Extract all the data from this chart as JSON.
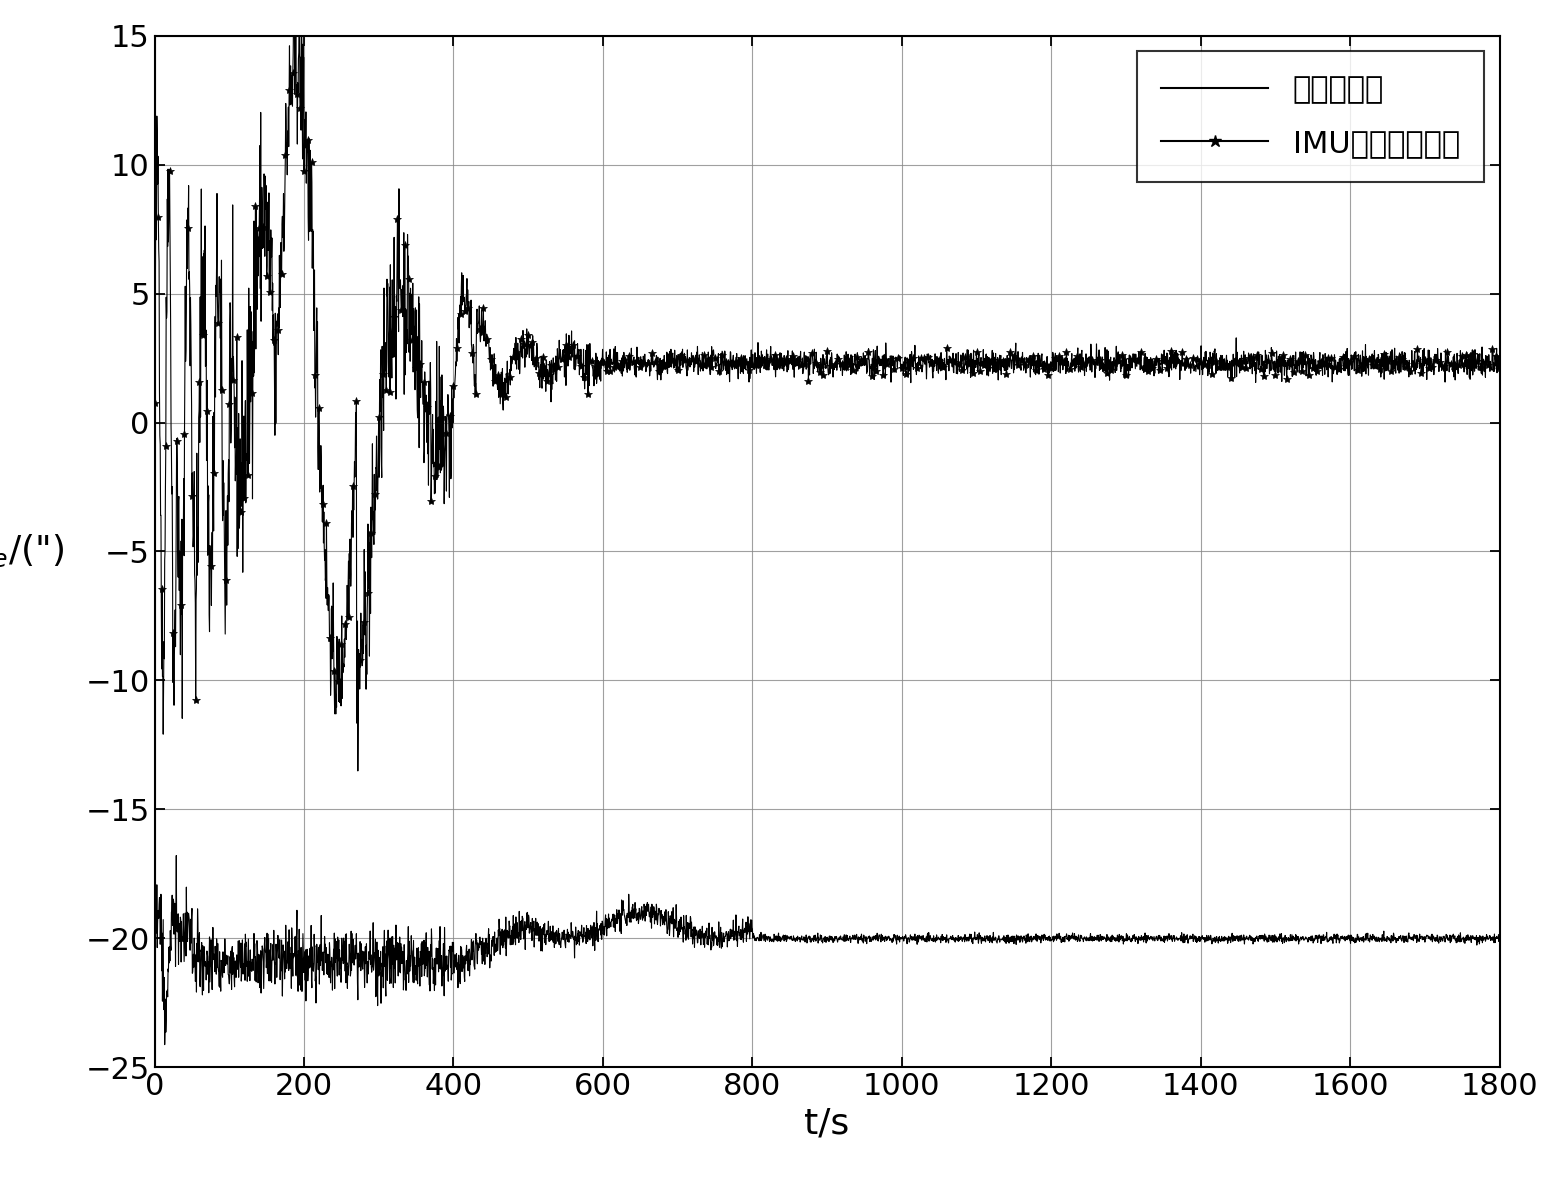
{
  "xlim": [
    0,
    1800
  ],
  "ylim": [
    -25,
    15
  ],
  "xticks": [
    0,
    200,
    400,
    600,
    800,
    1000,
    1200,
    1400,
    1600,
    1800
  ],
  "yticks": [
    -25,
    -20,
    -15,
    -10,
    -5,
    0,
    5,
    10,
    15
  ],
  "xlabel": "t/s",
  "legend1": "静基座对准",
  "legend2": "IMU旋转对准方案",
  "line_color": "#000000",
  "bg_color": "#ffffff",
  "grid_color": "#888888",
  "tick_fontsize": 22,
  "label_fontsize": 26,
  "legend_fontsize": 22,
  "imu_final": 2.3,
  "static_final": -20.0
}
